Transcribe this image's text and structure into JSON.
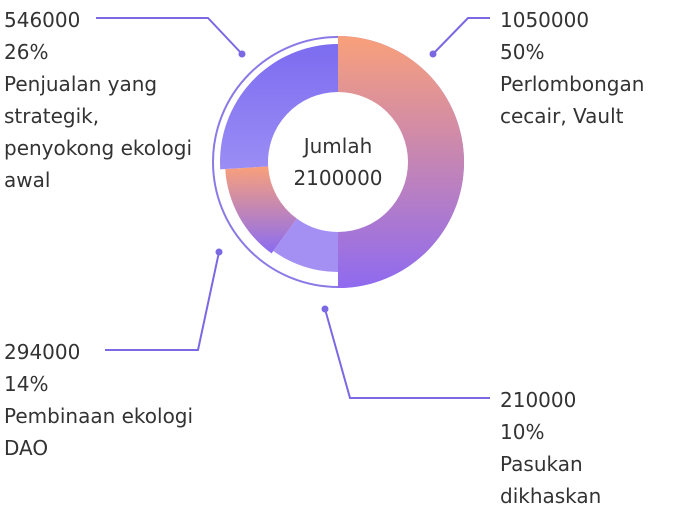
{
  "chart_data": {
    "type": "donut",
    "center_label": "Jumlah",
    "total": 2100000,
    "total_label": "2100000",
    "slices": [
      {
        "value": 1050000,
        "value_label": "1050000",
        "percent_label": "50%",
        "name_lines": [
          "Perlombongan",
          "cecair, Vault"
        ],
        "colors": [
          "#f9a07a",
          "#8f6af0"
        ]
      },
      {
        "value": 210000,
        "value_label": "210000",
        "percent_label": "10%",
        "name_lines": [
          "Pasukan",
          "dikhaskan"
        ],
        "colors": [
          "#a48ff2",
          "#a48ff2"
        ]
      },
      {
        "value": 294000,
        "value_label": "294000",
        "percent_label": "14%",
        "name_lines": [
          "Pembinaan ekologi",
          "DAO"
        ],
        "colors": [
          "#f9a07a",
          "#8a6cf2"
        ]
      },
      {
        "value": 546000,
        "value_label": "546000",
        "percent_label": "26%",
        "name_lines": [
          "Penjualan yang",
          "strategik,",
          "penyokong ekologi",
          "awal"
        ],
        "colors": [
          "#7c6cf0",
          "#9b8df5"
        ]
      }
    ],
    "line_color": "#7b68e3",
    "ring_color": "#8b7ae6"
  }
}
